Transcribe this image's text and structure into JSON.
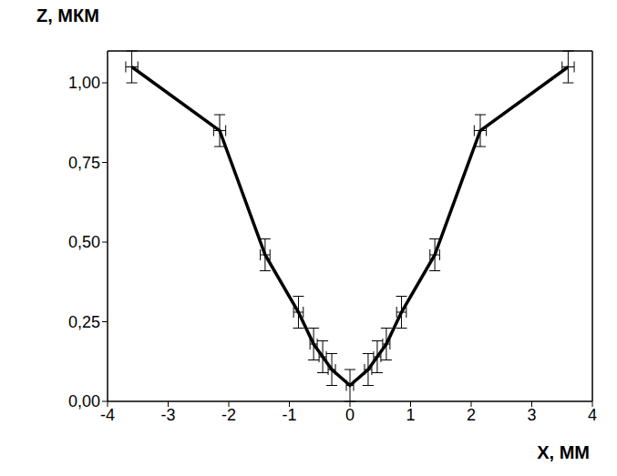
{
  "chart_data": {
    "type": "line",
    "x_label": "X, ММ",
    "y_label": "Z, МКМ",
    "x": [
      -3.6,
      -2.15,
      -1.4,
      -0.85,
      -0.6,
      -0.45,
      -0.3,
      0,
      0.3,
      0.45,
      0.6,
      0.85,
      1.4,
      2.15,
      3.6
    ],
    "values": [
      1.05,
      0.85,
      0.46,
      0.28,
      0.18,
      0.14,
      0.1,
      0.05,
      0.1,
      0.14,
      0.18,
      0.28,
      0.46,
      0.85,
      1.05
    ],
    "x_error": [
      0.1,
      0.1,
      0.08,
      0.08,
      0.06,
      0.06,
      0.06,
      0.06,
      0.06,
      0.06,
      0.06,
      0.08,
      0.08,
      0.1,
      0.1
    ],
    "y_error": [
      0.05,
      0.05,
      0.05,
      0.05,
      0.05,
      0.05,
      0.05,
      0.05,
      0.05,
      0.05,
      0.05,
      0.05,
      0.05,
      0.05,
      0.05
    ],
    "color": "#000000",
    "marker": "none",
    "grid": false,
    "xlim": [
      -4,
      4
    ],
    "xticks": [
      -4,
      -3,
      -2,
      -1,
      0,
      1,
      2,
      3,
      4
    ],
    "ylim": [
      0,
      1.1
    ],
    "yticks": [
      {
        "value": 0,
        "label": "0,00"
      },
      {
        "value": 0.25,
        "label": "0,25"
      },
      {
        "value": 0.5,
        "label": "0,50"
      },
      {
        "value": 0.75,
        "label": "0,75"
      },
      {
        "value": 1,
        "label": "1,00"
      }
    ]
  }
}
